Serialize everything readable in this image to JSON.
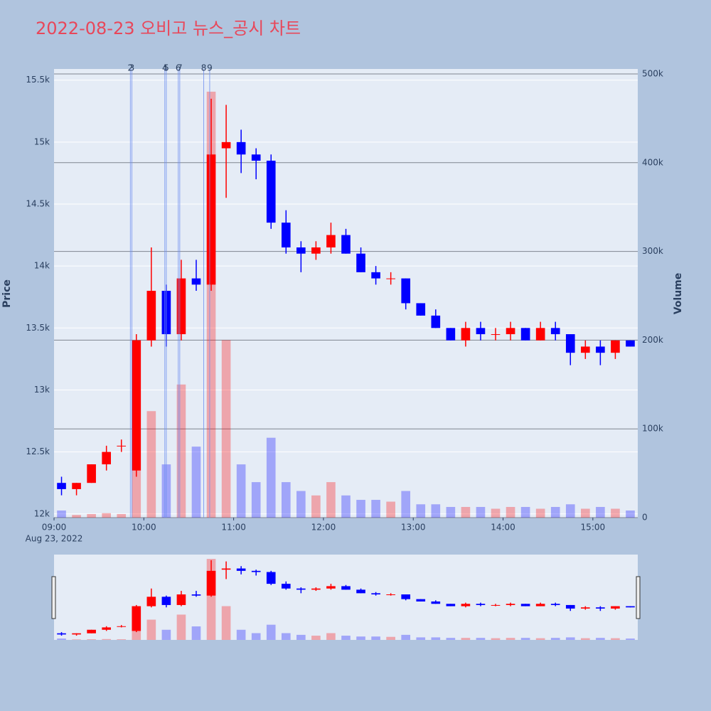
{
  "chart_data": {
    "type": "candlestick",
    "title": "2022-08-23 오비고 뉴스_공시 차트",
    "ylabel": "Price",
    "y2label": "Volume",
    "x": [
      "09:00",
      "09:10",
      "09:20",
      "09:30",
      "09:40",
      "09:50",
      "10:00",
      "10:10",
      "10:20",
      "10:30",
      "10:40",
      "10:50",
      "11:00",
      "11:10",
      "11:20",
      "11:30",
      "11:40",
      "11:50",
      "12:00",
      "12:10",
      "12:20",
      "12:30",
      "12:40",
      "12:50",
      "13:00",
      "13:10",
      "13:20",
      "13:30",
      "13:40",
      "13:50",
      "14:00",
      "14:10",
      "14:20",
      "14:30",
      "14:40",
      "14:50",
      "15:00",
      "15:10",
      "15:20"
    ],
    "open": [
      12250,
      12200,
      12250,
      12400,
      12550,
      12350,
      13400,
      13800,
      13450,
      13900,
      13850,
      14950,
      15000,
      14900,
      14850,
      14350,
      14150,
      14100,
      14150,
      14250,
      14100,
      13950,
      13900,
      13900,
      13700,
      13600,
      13500,
      13400,
      13500,
      13450,
      13450,
      13500,
      13400,
      13500,
      13450,
      13300,
      13350,
      13300,
      13400
    ],
    "high": [
      12300,
      12250,
      12400,
      12550,
      12600,
      13450,
      14150,
      13850,
      14050,
      14050,
      15350,
      15300,
      15100,
      14950,
      14900,
      14450,
      14200,
      14200,
      14350,
      14300,
      14150,
      14000,
      13950,
      13900,
      13700,
      13650,
      13500,
      13550,
      13550,
      13500,
      13550,
      13500,
      13550,
      13550,
      13450,
      13400,
      13400,
      13400,
      13400
    ],
    "low": [
      12150,
      12150,
      12250,
      12350,
      12500,
      12300,
      13350,
      13350,
      13400,
      13800,
      13800,
      14550,
      14750,
      14700,
      14300,
      14100,
      13950,
      14050,
      14100,
      14100,
      13950,
      13850,
      13850,
      13650,
      13600,
      13500,
      13400,
      13350,
      13400,
      13400,
      13400,
      13400,
      13400,
      13400,
      13200,
      13250,
      13200,
      13250,
      13350
    ],
    "close": [
      12200,
      12250,
      12400,
      12500,
      12550,
      13400,
      13800,
      13450,
      13900,
      13850,
      14900,
      15000,
      14900,
      14850,
      14350,
      14150,
      14100,
      14150,
      14250,
      14100,
      13950,
      13900,
      13900,
      13700,
      13600,
      13500,
      13400,
      13500,
      13450,
      13450,
      13500,
      13400,
      13500,
      13450,
      13300,
      13350,
      13300,
      13400,
      13350
    ],
    "volume": [
      8000,
      3000,
      4000,
      5000,
      4000,
      200000,
      120000,
      60000,
      150000,
      80000,
      480000,
      200000,
      60000,
      40000,
      90000,
      40000,
      30000,
      25000,
      40000,
      25000,
      20000,
      20000,
      18000,
      30000,
      15000,
      15000,
      12000,
      12000,
      12000,
      10000,
      12000,
      12000,
      10000,
      12000,
      15000,
      10000,
      12000,
      10000,
      8000
    ],
    "increasing_color": "#ff0000",
    "decreasing_color": "#0000ff",
    "xlim": [
      "09:00",
      "15:30"
    ],
    "xticks": [
      "09:00",
      "10:00",
      "11:00",
      "12:00",
      "13:00",
      "14:00",
      "15:00"
    ],
    "x_date_label": "Aug 23, 2022",
    "ylim": [
      11970,
      15590
    ],
    "yticks": [
      {
        "value": 12000,
        "label": "12k"
      },
      {
        "value": 12500,
        "label": "12.5k"
      },
      {
        "value": 13000,
        "label": "13k"
      },
      {
        "value": 13500,
        "label": "13.5k"
      },
      {
        "value": 14000,
        "label": "14k"
      },
      {
        "value": 14500,
        "label": "14.5k"
      },
      {
        "value": 15000,
        "label": "15k"
      },
      {
        "value": 15500,
        "label": "15.5k"
      }
    ],
    "y2lim": [
      0,
      505600
    ],
    "y2ticks": [
      0,
      {
        "value": 100000,
        "label": "100k"
      },
      {
        "value": 200000,
        "label": "200k"
      },
      {
        "value": 300000,
        "label": "300k"
      },
      {
        "value": 400000,
        "label": "400k"
      },
      {
        "value": 500000,
        "label": "500k"
      }
    ],
    "news": [
      {
        "time": "09:51",
        "label": "2"
      },
      {
        "time": "09:52",
        "label": "3"
      },
      {
        "time": "10:14",
        "label": "4"
      },
      {
        "time": "10:15",
        "label": "5"
      },
      {
        "time": "10:23",
        "label": "6"
      },
      {
        "time": "10:24",
        "label": "7"
      },
      {
        "time": "10:40",
        "label": "8"
      },
      {
        "time": "10:44",
        "label": "9"
      }
    ],
    "grid": true,
    "rangeslider": true
  }
}
